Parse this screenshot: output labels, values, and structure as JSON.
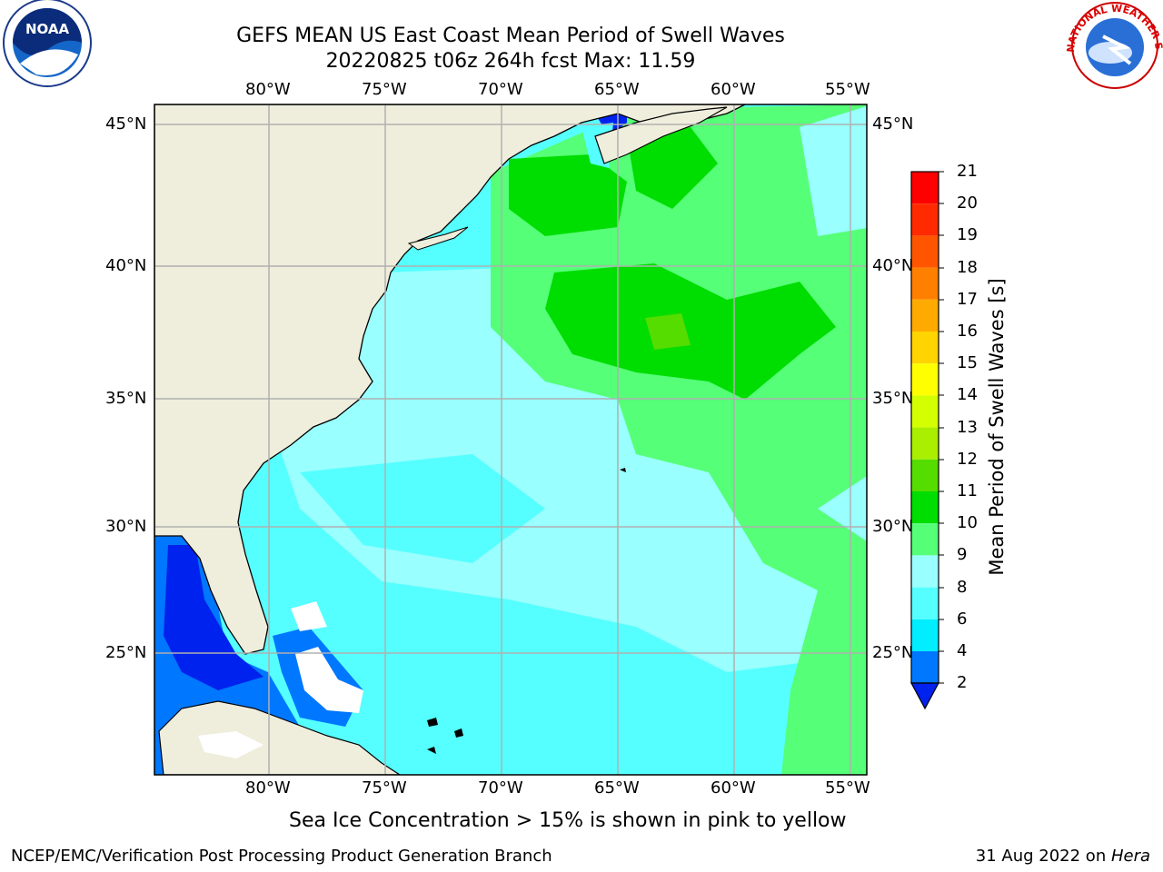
{
  "title": {
    "line1": "GEFS MEAN US East Coast Mean Period of Swell Waves",
    "line2": "20220825 t06z 264h fcst   Max: 11.59"
  },
  "map": {
    "lon_ticks_top": [
      "80°W",
      "75°W",
      "70°W",
      "65°W",
      "60°W",
      "55°W"
    ],
    "lon_ticks_bottom": [
      "80°W",
      "75°W",
      "70°W",
      "65°W",
      "60°W",
      "55°W"
    ],
    "lat_ticks_left": [
      "45°N",
      "40°N",
      "35°N",
      "30°N",
      "25°N"
    ],
    "lat_ticks_right": [
      "45°N",
      "40°N",
      "35°N",
      "30°N",
      "25°N"
    ],
    "colors": {
      "land": "#efeedd",
      "missing": "#ffffff",
      "grid": "#b0b0b0"
    }
  },
  "colorbar": {
    "label": "Mean Period of Swell Waves [s]",
    "ticks": [
      "21",
      "20",
      "19",
      "18",
      "17",
      "16",
      "15",
      "14",
      "13",
      "12",
      "11",
      "10",
      "9",
      "8",
      "6",
      "4",
      "2"
    ],
    "colors": [
      "#ff0000",
      "#ff2a00",
      "#ff5500",
      "#ff8000",
      "#ffaa00",
      "#ffd400",
      "#ffff00",
      "#d4ff00",
      "#aaee00",
      "#55dd00",
      "#00dd00",
      "#55ff77",
      "#99ffff",
      "#55ffff",
      "#00eeff",
      "#0077ff",
      "#0022ee"
    ]
  },
  "note": "Sea Ice Concentration > 15% is shown in pink to yellow",
  "footer": {
    "left": "NCEP/EMC/Verification Post Processing Product Generation Branch",
    "right_date": "31 Aug 2022 on ",
    "right_host": "Hera"
  },
  "logos": {
    "noaa": "NOAA",
    "nws": "NATIONAL WEATHER SERVICE"
  }
}
